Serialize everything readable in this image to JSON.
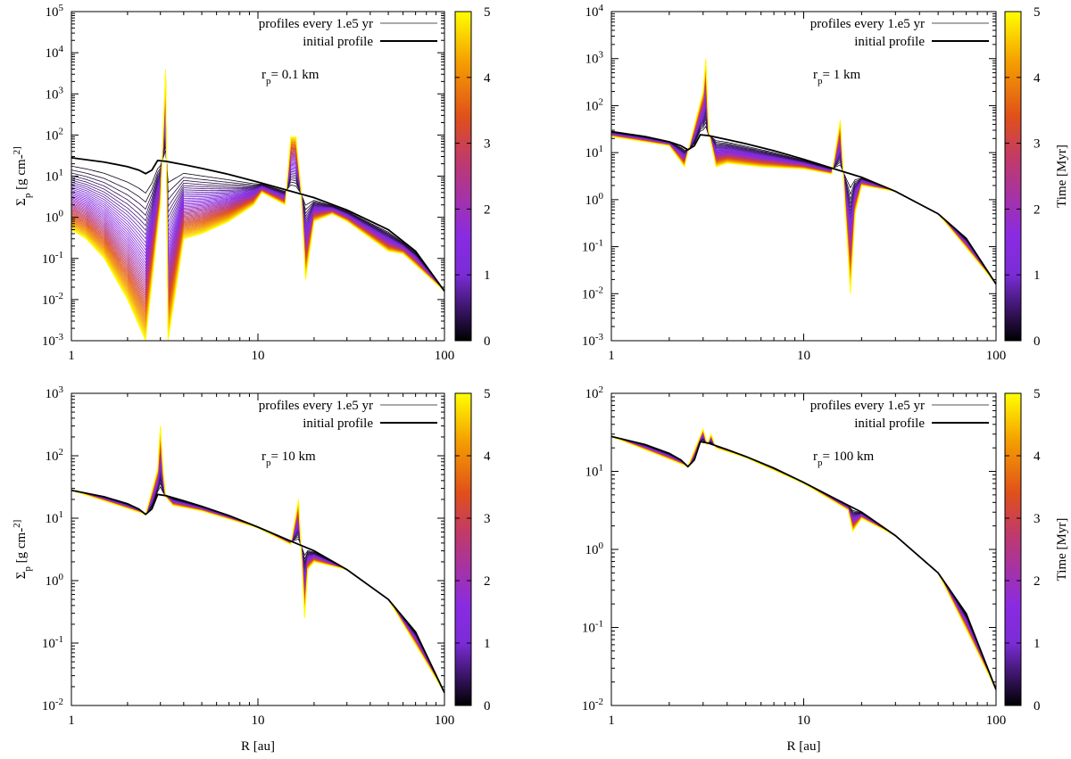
{
  "figure": {
    "legend": {
      "profiles_label": "profiles every 1.e5 yr",
      "initial_label": "initial profile"
    },
    "x_axis_label": "R [au]",
    "y_axis_label": "Σp [g cm-2]",
    "colorbar_label": "Time [Myr]",
    "colorbar_ticks": [
      "0",
      "1",
      "2",
      "3",
      "4",
      "5"
    ],
    "colormap": [
      "#000000",
      "#8a2be2",
      "#e0501a",
      "#f5a000",
      "#ffff00"
    ]
  },
  "chart_data": [
    {
      "type": "line",
      "panel": "top-left",
      "annotation": "rp= 0.1 km",
      "xlim": [
        1,
        100
      ],
      "xscale": "log",
      "ylim": [
        0.001,
        100000
      ],
      "yscale": "log",
      "x_ticks": [
        "1",
        "10",
        "100"
      ],
      "y_ticks": [
        "10-3",
        "10-2",
        "10-1",
        "100",
        "101",
        "102",
        "103",
        "104",
        "105"
      ],
      "y_label_shown": true,
      "colorbar_label_shown": false,
      "time_range_myr": [
        0,
        5
      ],
      "profile_interval_yr": 100000,
      "legend": [
        "profiles every 1.e5 yr",
        "initial profile"
      ],
      "initial_profile": {
        "x": [
          1,
          1.5,
          2,
          2.3,
          2.5,
          2.7,
          2.9,
          3.2,
          4,
          5,
          7,
          10,
          15,
          20,
          30,
          50,
          70,
          100
        ],
        "y": [
          28,
          22,
          17,
          14,
          11.5,
          14,
          24,
          23,
          19,
          15.5,
          11,
          7.2,
          4.3,
          3,
          1.5,
          0.5,
          0.15,
          0.016
        ]
      },
      "final_profile": {
        "x": [
          1,
          1.2,
          1.5,
          2,
          2.5,
          3,
          3.2,
          3.3,
          4,
          5,
          7,
          9.5,
          10.5,
          14,
          15,
          16,
          17,
          18,
          20,
          25,
          30,
          50,
          60,
          100
        ],
        "y": [
          0.5,
          0.3,
          0.1,
          0.01,
          0.001,
          2,
          4000,
          0.001,
          0.3,
          0.4,
          0.8,
          2,
          4,
          2,
          90,
          90,
          5,
          0.03,
          0.8,
          1.2,
          0.8,
          0.15,
          0.13,
          0.016
        ]
      }
    },
    {
      "type": "line",
      "panel": "top-right",
      "annotation": "rp= 1 km",
      "xlim": [
        1,
        100
      ],
      "xscale": "log",
      "ylim": [
        0.001,
        10000
      ],
      "yscale": "log",
      "x_ticks": [
        "1",
        "10",
        "100"
      ],
      "y_ticks": [
        "10-3",
        "10-2",
        "10-1",
        "100",
        "101",
        "102",
        "103",
        "104"
      ],
      "y_label_shown": false,
      "colorbar_label_shown": true,
      "time_range_myr": [
        0,
        5
      ],
      "profile_interval_yr": 100000,
      "legend": [
        "profiles every 1.e5 yr",
        "initial profile"
      ],
      "initial_profile": {
        "x": [
          1,
          1.5,
          2,
          2.3,
          2.5,
          2.7,
          2.9,
          3.2,
          4,
          5,
          7,
          10,
          15,
          20,
          30,
          50,
          70,
          100
        ],
        "y": [
          28,
          22,
          17,
          14,
          11.5,
          14,
          24,
          23,
          19,
          15.5,
          11,
          7.2,
          4.3,
          3,
          1.5,
          0.5,
          0.15,
          0.016
        ]
      },
      "final_profile": {
        "x": [
          1,
          2,
          2.4,
          2.6,
          3,
          3.1,
          3.2,
          3.5,
          4,
          6,
          10,
          14,
          15.5,
          16.5,
          17.5,
          18.5,
          20,
          30,
          50,
          100
        ],
        "y": [
          22,
          14,
          5,
          20,
          200,
          1000,
          30,
          5,
          6,
          5,
          4.5,
          3.5,
          50,
          0.5,
          0.01,
          0.5,
          2,
          1.5,
          0.5,
          0.016
        ]
      }
    },
    {
      "type": "line",
      "panel": "bottom-left",
      "annotation": "rp= 10 km",
      "xlim": [
        1,
        100
      ],
      "xscale": "log",
      "ylim": [
        0.01,
        1000
      ],
      "yscale": "log",
      "x_ticks": [
        "1",
        "10",
        "100"
      ],
      "y_ticks": [
        "10-2",
        "10-1",
        "100",
        "101",
        "102",
        "103"
      ],
      "y_label_shown": true,
      "x_label_shown": true,
      "colorbar_label_shown": false,
      "time_range_myr": [
        0,
        5
      ],
      "profile_interval_yr": 100000,
      "legend": [
        "profiles every 1.e5 yr",
        "initial profile"
      ],
      "initial_profile": {
        "x": [
          1,
          1.5,
          2,
          2.3,
          2.5,
          2.7,
          2.9,
          3.2,
          4,
          5,
          7,
          10,
          15,
          20,
          30,
          50,
          70,
          100
        ],
        "y": [
          28,
          22,
          17,
          14,
          11.5,
          14,
          24,
          23,
          19,
          15.5,
          11,
          7.2,
          4.3,
          3,
          1.5,
          0.5,
          0.15,
          0.016
        ]
      },
      "final_profile": {
        "x": [
          1,
          2.5,
          2.9,
          3,
          3.1,
          3.2,
          3.5,
          5,
          10,
          15,
          16.5,
          17.2,
          17.8,
          18.5,
          20,
          30,
          50,
          100
        ],
        "y": [
          28,
          11.5,
          60,
          300,
          60,
          22,
          16,
          13,
          7,
          3.8,
          20,
          2,
          0.25,
          1.5,
          2,
          1.5,
          0.5,
          0.016
        ]
      }
    },
    {
      "type": "line",
      "panel": "bottom-right",
      "annotation": "rp= 100 km",
      "xlim": [
        1,
        100
      ],
      "xscale": "log",
      "ylim": [
        0.01,
        100
      ],
      "yscale": "log",
      "x_ticks": [
        "1",
        "10",
        "100"
      ],
      "y_ticks": [
        "10-2",
        "10-1",
        "100",
        "101",
        "102"
      ],
      "y_label_shown": false,
      "x_label_shown": true,
      "colorbar_label_shown": true,
      "time_range_myr": [
        0,
        5
      ],
      "profile_interval_yr": 100000,
      "legend": [
        "profiles every 1.e5 yr",
        "initial profile"
      ],
      "initial_profile": {
        "x": [
          1,
          1.5,
          2,
          2.3,
          2.5,
          2.7,
          2.9,
          3.2,
          4,
          5,
          7,
          10,
          15,
          20,
          30,
          50,
          70,
          100
        ],
        "y": [
          28,
          22,
          17,
          14,
          11.5,
          14,
          24,
          23,
          19,
          15.5,
          11,
          7.2,
          4.3,
          3,
          1.5,
          0.5,
          0.15,
          0.016
        ]
      },
      "final_profile": {
        "x": [
          1,
          2.5,
          3,
          3.15,
          3.3,
          3.5,
          5,
          10,
          16,
          17,
          18,
          20,
          30,
          50,
          100
        ],
        "y": [
          28,
          11.5,
          35,
          22,
          30,
          20,
          15,
          7,
          3.5,
          3.2,
          1.7,
          2.5,
          1.5,
          0.5,
          0.016
        ]
      }
    }
  ]
}
